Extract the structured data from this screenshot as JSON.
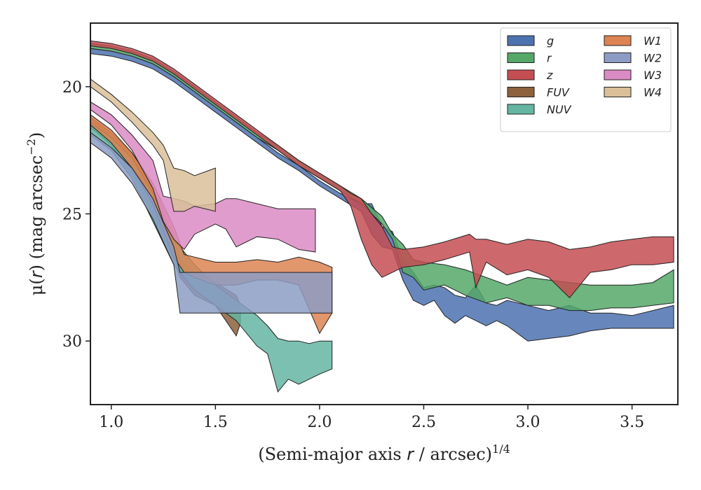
{
  "chart_data": {
    "type": "area",
    "xlabel": {
      "pre": "(Semi-major axis ",
      "var": "r",
      "post": " / arcsec)",
      "sup": "1/4"
    },
    "ylabel": {
      "pre": "μ(",
      "var": "r",
      "post": ") (mag arcsec",
      "sup": "−2",
      "end": ")"
    },
    "xlim": [
      0.9,
      3.72
    ],
    "ylim": [
      32.5,
      17.5
    ],
    "y_inverted": true,
    "xticks": [
      1.0,
      1.5,
      2.0,
      2.5,
      3.0,
      3.5
    ],
    "xtick_labels": [
      "1.0",
      "1.5",
      "2.0",
      "2.5",
      "3.0",
      "3.5"
    ],
    "yticks": [
      20,
      25,
      30
    ],
    "ytick_labels": [
      "20",
      "25",
      "30"
    ],
    "legend": {
      "position": "top-right",
      "columns": 2
    },
    "series": [
      {
        "name": "g",
        "color": "#4c72b0",
        "band": [
          [
            0.9,
            18.5,
            18.7
          ],
          [
            1.0,
            18.6,
            18.8
          ],
          [
            1.1,
            18.8,
            19.0
          ],
          [
            1.2,
            19.1,
            19.3
          ],
          [
            1.3,
            19.6,
            19.8
          ],
          [
            1.4,
            20.2,
            20.4
          ],
          [
            1.5,
            20.8,
            21.0
          ],
          [
            1.6,
            21.4,
            21.6
          ],
          [
            1.7,
            22.0,
            22.2
          ],
          [
            1.8,
            22.6,
            22.8
          ],
          [
            1.9,
            23.1,
            23.3
          ],
          [
            2.0,
            23.7,
            23.9
          ],
          [
            2.1,
            24.2,
            24.4
          ],
          [
            2.2,
            24.6,
            24.9
          ],
          [
            2.25,
            24.6,
            25.8
          ],
          [
            2.3,
            25.5,
            26.3
          ],
          [
            2.35,
            25.7,
            26.4
          ],
          [
            2.4,
            26.8,
            27.6
          ],
          [
            2.45,
            27.3,
            28.4
          ],
          [
            2.5,
            27.9,
            28.6
          ],
          [
            2.55,
            27.8,
            28.4
          ],
          [
            2.6,
            27.9,
            29.0
          ],
          [
            2.65,
            28.2,
            29.3
          ],
          [
            2.7,
            28.3,
            29.0
          ],
          [
            2.75,
            27.8,
            29.2
          ],
          [
            2.8,
            28.5,
            29.4
          ],
          [
            2.85,
            28.6,
            29.2
          ],
          [
            2.9,
            28.4,
            29.4
          ],
          [
            3.0,
            28.6,
            30.0
          ],
          [
            3.1,
            28.8,
            29.9
          ],
          [
            3.2,
            28.6,
            29.8
          ],
          [
            3.3,
            28.9,
            29.6
          ],
          [
            3.4,
            28.9,
            29.5
          ],
          [
            3.5,
            29.0,
            29.5
          ],
          [
            3.6,
            28.8,
            29.5
          ],
          [
            3.7,
            28.6,
            29.5
          ]
        ]
      },
      {
        "name": "r",
        "color": "#55a868",
        "band": [
          [
            0.9,
            18.3,
            18.5
          ],
          [
            1.0,
            18.4,
            18.6
          ],
          [
            1.1,
            18.6,
            18.8
          ],
          [
            1.2,
            18.9,
            19.1
          ],
          [
            1.3,
            19.4,
            19.6
          ],
          [
            1.4,
            20.0,
            20.2
          ],
          [
            1.5,
            20.6,
            20.8
          ],
          [
            1.6,
            21.2,
            21.4
          ],
          [
            1.7,
            21.8,
            22.0
          ],
          [
            1.8,
            22.3,
            22.5
          ],
          [
            1.9,
            22.9,
            23.1
          ],
          [
            2.0,
            23.4,
            23.6
          ],
          [
            2.1,
            23.9,
            24.1
          ],
          [
            2.2,
            24.4,
            24.6
          ],
          [
            2.3,
            25.1,
            25.4
          ],
          [
            2.35,
            25.8,
            26.0
          ],
          [
            2.4,
            26.2,
            27.3
          ],
          [
            2.45,
            26.8,
            27.5
          ],
          [
            2.5,
            26.9,
            28.0
          ],
          [
            2.6,
            27.0,
            27.8
          ],
          [
            2.7,
            27.2,
            28.2
          ],
          [
            2.8,
            27.5,
            28.5
          ],
          [
            2.9,
            27.8,
            28.3
          ],
          [
            3.0,
            27.5,
            28.6
          ],
          [
            3.1,
            27.6,
            28.6
          ],
          [
            3.2,
            27.7,
            28.8
          ],
          [
            3.3,
            27.8,
            28.8
          ],
          [
            3.4,
            27.8,
            28.7
          ],
          [
            3.5,
            27.8,
            28.7
          ],
          [
            3.6,
            27.7,
            28.6
          ],
          [
            3.7,
            27.2,
            28.5
          ]
        ]
      },
      {
        "name": "z",
        "color": "#c44e52",
        "band": [
          [
            0.9,
            18.2,
            18.4
          ],
          [
            1.0,
            18.3,
            18.5
          ],
          [
            1.1,
            18.5,
            18.7
          ],
          [
            1.2,
            18.8,
            19.0
          ],
          [
            1.3,
            19.3,
            19.5
          ],
          [
            1.4,
            19.9,
            20.1
          ],
          [
            1.5,
            20.5,
            20.7
          ],
          [
            1.6,
            21.1,
            21.3
          ],
          [
            1.7,
            21.7,
            21.9
          ],
          [
            1.8,
            22.3,
            22.5
          ],
          [
            1.9,
            22.9,
            23.1
          ],
          [
            2.0,
            23.4,
            23.6
          ],
          [
            2.1,
            23.9,
            24.1
          ],
          [
            2.15,
            24.2,
            24.7
          ],
          [
            2.2,
            24.4,
            26.0
          ],
          [
            2.25,
            25.0,
            27.0
          ],
          [
            2.3,
            25.5,
            27.5
          ],
          [
            2.35,
            26.3,
            27.3
          ],
          [
            2.4,
            26.4,
            27.1
          ],
          [
            2.5,
            26.3,
            27.0
          ],
          [
            2.6,
            26.1,
            26.8
          ],
          [
            2.72,
            25.8,
            26.5
          ],
          [
            2.75,
            26.0,
            27.9
          ],
          [
            2.8,
            26.0,
            26.9
          ],
          [
            2.9,
            26.2,
            27.4
          ],
          [
            3.0,
            26.0,
            27.2
          ],
          [
            3.1,
            26.1,
            27.5
          ],
          [
            3.2,
            26.4,
            28.3
          ],
          [
            3.3,
            26.3,
            27.3
          ],
          [
            3.4,
            26.1,
            27.2
          ],
          [
            3.5,
            26.0,
            27.0
          ],
          [
            3.6,
            25.9,
            27.0
          ],
          [
            3.7,
            25.9,
            26.9
          ]
        ]
      },
      {
        "name": "FUV",
        "color": "#8c613c",
        "band": [
          [
            0.9,
            21.2,
            21.6
          ],
          [
            1.0,
            21.8,
            22.3
          ],
          [
            1.1,
            22.6,
            23.4
          ],
          [
            1.2,
            24.0,
            25.0
          ],
          [
            1.3,
            25.8,
            26.8
          ],
          [
            1.33,
            26.8,
            27.5
          ],
          [
            1.4,
            27.3,
            28.2
          ],
          [
            1.5,
            27.7,
            28.6
          ],
          [
            1.6,
            28.2,
            29.8
          ],
          [
            1.62,
            28.6,
            29.3
          ]
        ]
      },
      {
        "name": "NUV",
        "color": "#64b5a2",
        "band": [
          [
            0.9,
            21.4,
            21.9
          ],
          [
            1.0,
            22.0,
            22.5
          ],
          [
            1.1,
            22.8,
            23.6
          ],
          [
            1.2,
            24.2,
            25.3
          ],
          [
            1.3,
            26.0,
            27.0
          ],
          [
            1.4,
            27.0,
            28.0
          ],
          [
            1.5,
            27.8,
            28.6
          ],
          [
            1.6,
            28.4,
            29.2
          ],
          [
            1.7,
            29.0,
            30.2
          ],
          [
            1.75,
            29.4,
            30.5
          ],
          [
            1.8,
            29.9,
            32.0
          ],
          [
            1.85,
            30.0,
            31.5
          ],
          [
            1.9,
            30.0,
            31.7
          ],
          [
            1.95,
            30.1,
            31.5
          ],
          [
            2.0,
            30.0,
            31.3
          ],
          [
            2.06,
            30.0,
            31.1
          ]
        ]
      },
      {
        "name": "W1",
        "color": "#dd8452",
        "band": [
          [
            0.9,
            21.1,
            21.5
          ],
          [
            1.0,
            21.7,
            22.2
          ],
          [
            1.1,
            22.6,
            23.2
          ],
          [
            1.2,
            23.8,
            24.6
          ],
          [
            1.3,
            25.5,
            26.7
          ],
          [
            1.35,
            26.6,
            27.3
          ],
          [
            1.4,
            26.7,
            27.5
          ],
          [
            1.5,
            26.9,
            27.8
          ],
          [
            1.6,
            26.9,
            27.8
          ],
          [
            1.7,
            26.8,
            27.6
          ],
          [
            1.8,
            26.9,
            27.6
          ],
          [
            1.9,
            26.7,
            27.8
          ],
          [
            2.0,
            26.9,
            29.7
          ],
          [
            2.06,
            27.1,
            28.9
          ]
        ]
      },
      {
        "name": "W2",
        "color": "#8c9cc4",
        "band": [
          [
            0.9,
            21.8,
            22.2
          ],
          [
            1.0,
            22.4,
            22.8
          ],
          [
            1.1,
            23.2,
            23.8
          ],
          [
            1.2,
            24.4,
            25.2
          ],
          [
            1.3,
            26.3,
            27.0
          ],
          [
            1.33,
            27.3,
            28.9
          ],
          [
            1.4,
            27.3,
            28.9
          ],
          [
            1.6,
            27.3,
            28.9
          ],
          [
            1.8,
            27.3,
            28.9
          ],
          [
            2.0,
            27.3,
            28.9
          ],
          [
            2.06,
            27.3,
            28.9
          ]
        ]
      },
      {
        "name": "W3",
        "color": "#da8bc3",
        "band": [
          [
            0.9,
            20.6,
            20.9
          ],
          [
            1.0,
            21.1,
            21.5
          ],
          [
            1.1,
            21.9,
            22.5
          ],
          [
            1.2,
            22.9,
            24.0
          ],
          [
            1.25,
            24.3,
            25.3
          ],
          [
            1.3,
            24.4,
            26.0
          ],
          [
            1.35,
            24.5,
            26.4
          ],
          [
            1.4,
            24.7,
            25.8
          ],
          [
            1.5,
            24.6,
            25.4
          ],
          [
            1.55,
            24.4,
            25.6
          ],
          [
            1.6,
            24.4,
            26.3
          ],
          [
            1.7,
            24.6,
            25.9
          ],
          [
            1.8,
            24.8,
            26.0
          ],
          [
            1.9,
            24.8,
            26.4
          ],
          [
            1.98,
            24.8,
            26.5
          ]
        ]
      },
      {
        "name": "W4",
        "color": "#d9bf9a",
        "band": [
          [
            0.9,
            19.7,
            20.0
          ],
          [
            1.0,
            20.3,
            20.6
          ],
          [
            1.1,
            21.0,
            21.4
          ],
          [
            1.2,
            21.8,
            22.3
          ],
          [
            1.25,
            22.3,
            22.9
          ],
          [
            1.3,
            23.2,
            24.9
          ],
          [
            1.35,
            23.3,
            24.9
          ],
          [
            1.4,
            23.5,
            24.7
          ],
          [
            1.5,
            23.2,
            24.9
          ]
        ]
      }
    ]
  }
}
